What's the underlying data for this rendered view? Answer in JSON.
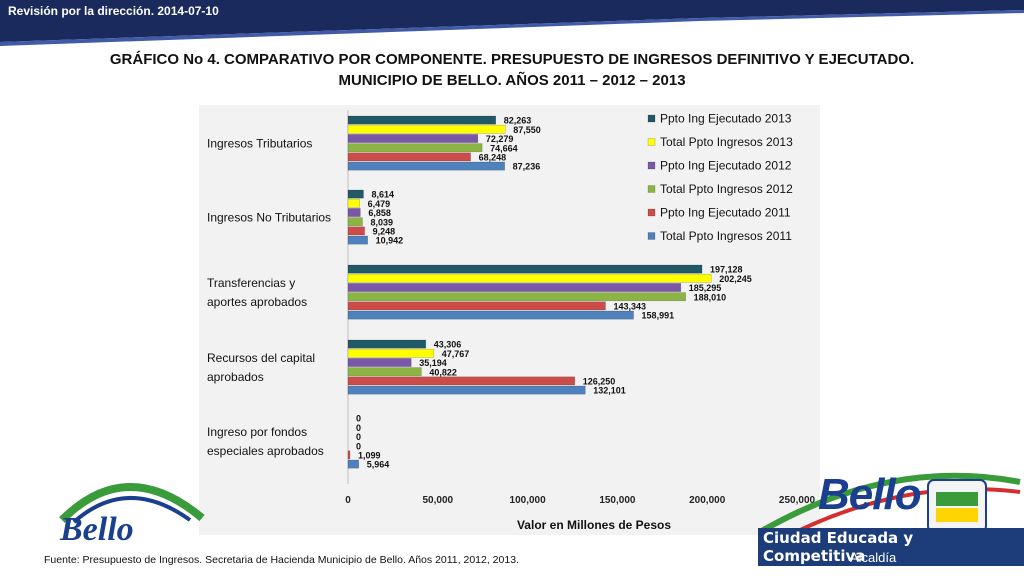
{
  "header": {
    "topbar": "Revisión por la dirección. 2014-07-10",
    "title_line1": "GRÁFICO No 4. COMPARATIVO POR COMPONENTE. PRESUPUESTO DE INGRESOS DEFINITIVO Y EJECUTADO.",
    "title_line2": "MUNICIPIO DE BELLO. AÑOS 2011 – 2012 – 2013"
  },
  "footer": {
    "source": "Fuente: Presupuesto de Ingresos. Secretaria de Hacienda Municipio de Bello. Años 2011, 2012, 2013.",
    "brand_slogan": "Ciudad Educada y Competitiva",
    "brand_sub": "Alcaldía",
    "brand_name": "Bello",
    "logo_left_text": "Bello"
  },
  "colors": {
    "navy": "#1b2a5c",
    "background_panel": "#f2f2f2",
    "brand_blue": "#1a3f8f",
    "brand_green": "#3a9b3a",
    "brand_red": "#d42e2e"
  },
  "chart_data": {
    "type": "bar",
    "orientation": "horizontal",
    "categories": [
      "Ingresos Tributarios",
      "Ingresos No Tributarios",
      "Transferencias y aportes aprobados",
      "Recursos del capital aprobados",
      "Ingreso por fondos especiales aprobados"
    ],
    "category_lines": [
      [
        "Ingresos Tributarios"
      ],
      [
        "Ingresos No Tributarios"
      ],
      [
        "Transferencias y",
        "aportes aprobados"
      ],
      [
        "Recursos del capital",
        "aprobados"
      ],
      [
        "Ingreso por fondos",
        "especiales aprobados"
      ]
    ],
    "series": [
      {
        "name": "Ppto Ing Ejecutado 2013",
        "color": "#215967",
        "values": [
          82263,
          8614,
          197128,
          43306,
          0
        ],
        "labels": [
          "82,263",
          "8,614",
          "197,128",
          "43,306",
          "0"
        ]
      },
      {
        "name": "Total Ppto Ingresos 2013",
        "color": "#ffff00",
        "values": [
          87550,
          6479,
          202245,
          47767,
          0
        ],
        "labels": [
          "87,550",
          "6,479",
          "202,245",
          "47,767",
          "0"
        ]
      },
      {
        "name": "Ppto Ing Ejecutado 2012",
        "color": "#7b57a8",
        "values": [
          72279,
          6858,
          185295,
          35194,
          0
        ],
        "labels": [
          "72,279",
          "6,858",
          "185,295",
          "35,194",
          "0"
        ]
      },
      {
        "name": "Total Ppto Ingresos 2012",
        "color": "#8ab543",
        "values": [
          74664,
          8039,
          188010,
          40822,
          0
        ],
        "labels": [
          "74,664",
          "8,039",
          "188,010",
          "40,822",
          "0"
        ]
      },
      {
        "name": "Ppto Ing Ejecutado 2011",
        "color": "#cc4c4a",
        "values": [
          68248,
          9248,
          143343,
          126250,
          1099
        ],
        "labels": [
          "68,248",
          "9,248",
          "143,343",
          "126,250",
          "1,099"
        ]
      },
      {
        "name": "Total Ppto Ingresos 2011",
        "color": "#4f81bd",
        "values": [
          87236,
          10942,
          158991,
          132101,
          5964
        ],
        "labels": [
          "87,236",
          "10,942",
          "158,991",
          "132,101",
          "5,964"
        ]
      }
    ],
    "xlim": [
      0,
      250000
    ],
    "xticks": [
      "0",
      "50,000",
      "100,000",
      "150,000",
      "200,000",
      "250,000"
    ],
    "xlabel": "Valor en Millones de Pesos",
    "ylabel": "",
    "legend_position": "top-right",
    "grid": false
  }
}
